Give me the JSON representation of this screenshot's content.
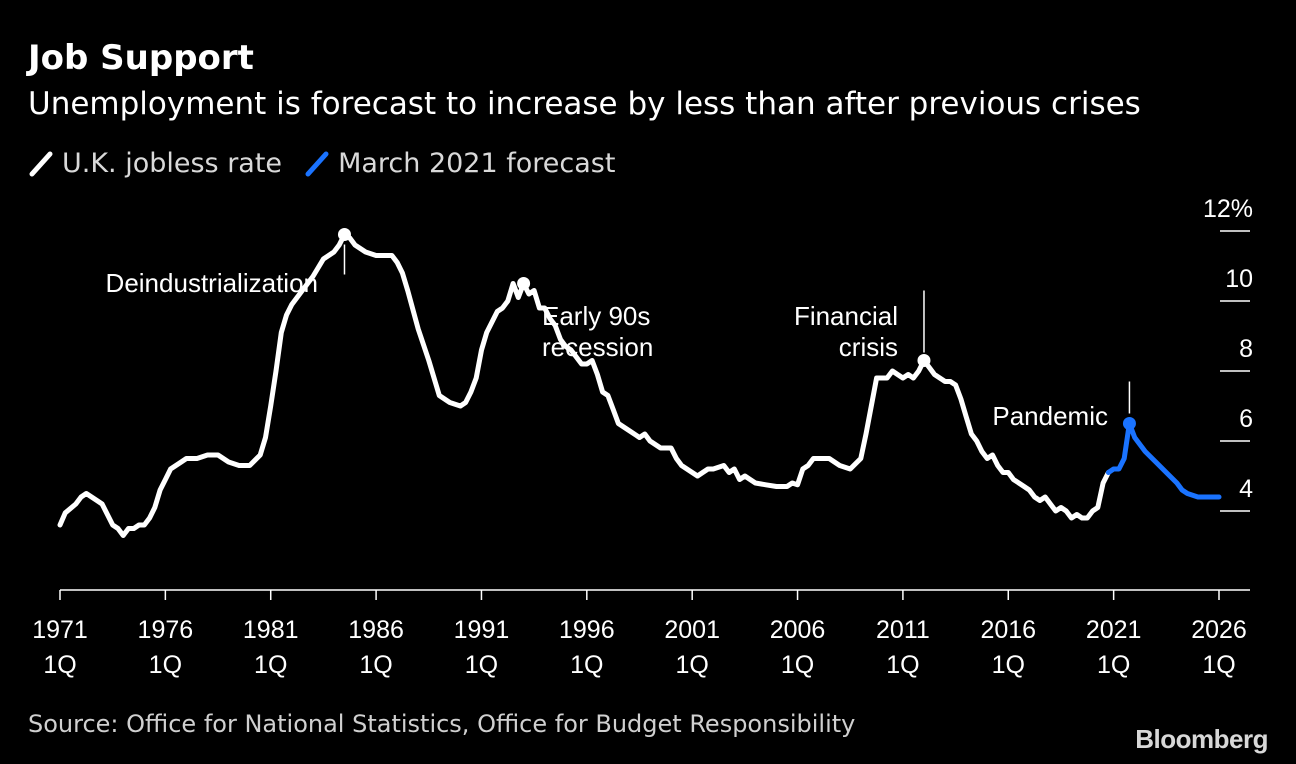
{
  "title": "Job Support",
  "subtitle": "Unemployment is forecast to increase by less than after previous crises",
  "legend": [
    {
      "label": "U.K. jobless rate",
      "color": "#ffffff"
    },
    {
      "label": "March 2021 forecast",
      "color": "#1a73ff"
    }
  ],
  "source": "Source: Office for National Statistics, Office for Budget Responsibility",
  "logo": "Bloomberg",
  "chart_data": {
    "type": "line",
    "ylim": [
      2,
      12
    ],
    "yticks": [
      {
        "value": 12,
        "label": "12%"
      },
      {
        "value": 10,
        "label": "10"
      },
      {
        "value": 8,
        "label": "8"
      },
      {
        "value": 6,
        "label": "6"
      },
      {
        "value": 4,
        "label": "4"
      }
    ],
    "xlim": [
      1971.0,
      2026.0
    ],
    "xticks": [
      {
        "value": 1971,
        "label": [
          "1971",
          "1Q"
        ]
      },
      {
        "value": 1976,
        "label": [
          "1976",
          "1Q"
        ]
      },
      {
        "value": 1981,
        "label": [
          "1981",
          "1Q"
        ]
      },
      {
        "value": 1986,
        "label": [
          "1986",
          "1Q"
        ]
      },
      {
        "value": 1991,
        "label": [
          "1991",
          "1Q"
        ]
      },
      {
        "value": 1996,
        "label": [
          "1996",
          "1Q"
        ]
      },
      {
        "value": 2001,
        "label": [
          "2001",
          "1Q"
        ]
      },
      {
        "value": 2006,
        "label": [
          "2006",
          "1Q"
        ]
      },
      {
        "value": 2011,
        "label": [
          "2011",
          "1Q"
        ]
      },
      {
        "value": 2016,
        "label": [
          "2016",
          "1Q"
        ]
      },
      {
        "value": 2021,
        "label": [
          "2021",
          "1Q"
        ]
      },
      {
        "value": 2026,
        "label": [
          "2026",
          "1Q"
        ]
      }
    ],
    "series": [
      {
        "name": "U.K. jobless rate",
        "color": "#ffffff",
        "points": [
          [
            1971.0,
            3.6
          ],
          [
            1971.25,
            3.95
          ],
          [
            1971.75,
            4.2
          ],
          [
            1972.0,
            4.4
          ],
          [
            1972.25,
            4.5
          ],
          [
            1972.5,
            4.4
          ],
          [
            1972.75,
            4.3
          ],
          [
            1973.0,
            4.2
          ],
          [
            1973.25,
            3.9
          ],
          [
            1973.5,
            3.6
          ],
          [
            1973.75,
            3.5
          ],
          [
            1974.0,
            3.3
          ],
          [
            1974.25,
            3.5
          ],
          [
            1974.5,
            3.5
          ],
          [
            1974.75,
            3.6
          ],
          [
            1975.0,
            3.6
          ],
          [
            1975.25,
            3.8
          ],
          [
            1975.5,
            4.1
          ],
          [
            1975.75,
            4.6
          ],
          [
            1976.0,
            4.9
          ],
          [
            1976.25,
            5.2
          ],
          [
            1976.5,
            5.3
          ],
          [
            1976.75,
            5.4
          ],
          [
            1977.0,
            5.5
          ],
          [
            1977.5,
            5.5
          ],
          [
            1978.0,
            5.6
          ],
          [
            1978.5,
            5.6
          ],
          [
            1979.0,
            5.4
          ],
          [
            1979.5,
            5.3
          ],
          [
            1980.0,
            5.3
          ],
          [
            1980.5,
            5.6
          ],
          [
            1980.75,
            6.1
          ],
          [
            1981.0,
            7.0
          ],
          [
            1981.25,
            8.0
          ],
          [
            1981.5,
            9.1
          ],
          [
            1981.75,
            9.6
          ],
          [
            1982.0,
            9.9
          ],
          [
            1982.5,
            10.3
          ],
          [
            1983.0,
            10.7
          ],
          [
            1983.5,
            11.2
          ],
          [
            1984.0,
            11.4
          ],
          [
            1984.25,
            11.6
          ],
          [
            1984.5,
            11.9
          ],
          [
            1984.75,
            11.8
          ],
          [
            1985.0,
            11.6
          ],
          [
            1985.5,
            11.4
          ],
          [
            1986.0,
            11.3
          ],
          [
            1986.25,
            11.3
          ],
          [
            1986.5,
            11.3
          ],
          [
            1986.75,
            11.3
          ],
          [
            1987.0,
            11.1
          ],
          [
            1987.25,
            10.8
          ],
          [
            1987.5,
            10.3
          ],
          [
            1988.0,
            9.2
          ],
          [
            1988.5,
            8.3
          ],
          [
            1989.0,
            7.3
          ],
          [
            1989.5,
            7.1
          ],
          [
            1990.0,
            7.0
          ],
          [
            1990.25,
            7.1
          ],
          [
            1990.5,
            7.4
          ],
          [
            1990.75,
            7.8
          ],
          [
            1991.0,
            8.6
          ],
          [
            1991.25,
            9.1
          ],
          [
            1991.5,
            9.4
          ],
          [
            1991.75,
            9.7
          ],
          [
            1992.0,
            9.8
          ],
          [
            1992.25,
            10.0
          ],
          [
            1992.5,
            10.5
          ],
          [
            1992.75,
            10.1
          ],
          [
            1993.0,
            10.5
          ],
          [
            1993.25,
            10.2
          ],
          [
            1993.5,
            10.3
          ],
          [
            1993.75,
            9.8
          ],
          [
            1994.0,
            9.8
          ],
          [
            1994.25,
            9.5
          ],
          [
            1994.5,
            9.3
          ],
          [
            1994.75,
            8.9
          ],
          [
            1995.0,
            8.7
          ],
          [
            1995.25,
            8.6
          ],
          [
            1995.5,
            8.4
          ],
          [
            1995.75,
            8.2
          ],
          [
            1996.0,
            8.2
          ],
          [
            1996.25,
            8.3
          ],
          [
            1996.5,
            7.9
          ],
          [
            1996.75,
            7.4
          ],
          [
            1997.0,
            7.3
          ],
          [
            1997.25,
            6.9
          ],
          [
            1997.5,
            6.5
          ],
          [
            1998.0,
            6.3
          ],
          [
            1998.5,
            6.1
          ],
          [
            1998.75,
            6.2
          ],
          [
            1999.0,
            6.0
          ],
          [
            1999.5,
            5.8
          ],
          [
            2000.0,
            5.8
          ],
          [
            2000.25,
            5.5
          ],
          [
            2000.5,
            5.3
          ],
          [
            2001.0,
            5.1
          ],
          [
            2001.25,
            5.0
          ],
          [
            2001.5,
            5.1
          ],
          [
            2001.75,
            5.2
          ],
          [
            2002.0,
            5.2
          ],
          [
            2002.5,
            5.3
          ],
          [
            2002.75,
            5.1
          ],
          [
            2003.0,
            5.2
          ],
          [
            2003.25,
            4.9
          ],
          [
            2003.5,
            5.0
          ],
          [
            2003.75,
            4.9
          ],
          [
            2004.0,
            4.8
          ],
          [
            2004.5,
            4.75
          ],
          [
            2005.0,
            4.7
          ],
          [
            2005.5,
            4.7
          ],
          [
            2005.75,
            4.8
          ],
          [
            2006.0,
            4.75
          ],
          [
            2006.25,
            5.2
          ],
          [
            2006.5,
            5.3
          ],
          [
            2006.75,
            5.5
          ],
          [
            2007.0,
            5.5
          ],
          [
            2007.5,
            5.5
          ],
          [
            2008.0,
            5.3
          ],
          [
            2008.5,
            5.2
          ],
          [
            2009.0,
            5.5
          ],
          [
            2009.25,
            6.2
          ],
          [
            2009.5,
            7.0
          ],
          [
            2009.75,
            7.8
          ],
          [
            2010.0,
            7.8
          ],
          [
            2010.25,
            7.8
          ],
          [
            2010.5,
            8.0
          ],
          [
            2010.75,
            7.9
          ],
          [
            2011.0,
            7.8
          ],
          [
            2011.25,
            7.9
          ],
          [
            2011.5,
            7.8
          ],
          [
            2011.75,
            8.0
          ],
          [
            2012.0,
            8.3
          ],
          [
            2012.25,
            8.1
          ],
          [
            2012.5,
            7.9
          ],
          [
            2012.75,
            7.8
          ],
          [
            2013.0,
            7.7
          ],
          [
            2013.25,
            7.7
          ],
          [
            2013.5,
            7.6
          ],
          [
            2013.75,
            7.2
          ],
          [
            2014.0,
            6.7
          ],
          [
            2014.25,
            6.2
          ],
          [
            2014.5,
            6.0
          ],
          [
            2014.75,
            5.7
          ],
          [
            2015.0,
            5.5
          ],
          [
            2015.25,
            5.6
          ],
          [
            2015.5,
            5.3
          ],
          [
            2015.75,
            5.1
          ],
          [
            2016.0,
            5.1
          ],
          [
            2016.25,
            4.9
          ],
          [
            2016.5,
            4.8
          ],
          [
            2016.75,
            4.7
          ],
          [
            2017.0,
            4.6
          ],
          [
            2017.25,
            4.4
          ],
          [
            2017.5,
            4.3
          ],
          [
            2017.75,
            4.4
          ],
          [
            2018.0,
            4.2
          ],
          [
            2018.25,
            4.0
          ],
          [
            2018.5,
            4.1
          ],
          [
            2018.75,
            4.0
          ],
          [
            2019.0,
            3.8
          ],
          [
            2019.25,
            3.9
          ],
          [
            2019.5,
            3.8
          ],
          [
            2019.75,
            3.8
          ],
          [
            2020.0,
            4.0
          ],
          [
            2020.25,
            4.1
          ],
          [
            2020.5,
            4.8
          ],
          [
            2020.75,
            5.1
          ]
        ]
      },
      {
        "name": "March 2021 forecast",
        "color": "#1a73ff",
        "points": [
          [
            2020.75,
            5.1
          ],
          [
            2021.0,
            5.2
          ],
          [
            2021.25,
            5.2
          ],
          [
            2021.5,
            5.5
          ],
          [
            2021.75,
            6.5
          ],
          [
            2022.0,
            6.1
          ],
          [
            2022.5,
            5.7
          ],
          [
            2023.0,
            5.4
          ],
          [
            2023.5,
            5.1
          ],
          [
            2024.0,
            4.8
          ],
          [
            2024.25,
            4.6
          ],
          [
            2024.5,
            4.5
          ],
          [
            2025.0,
            4.4
          ],
          [
            2025.5,
            4.4
          ],
          [
            2026.0,
            4.4
          ]
        ]
      }
    ],
    "annotations": [
      {
        "label": "Deindustrialization",
        "x": 1984.5,
        "y": 11.9,
        "align": "left"
      },
      {
        "label": "Early 90s recession",
        "x": 1993.0,
        "y": 10.5,
        "align": "right-below"
      },
      {
        "label": "Financial crisis",
        "x": 2012.0,
        "y": 8.3,
        "align": "above-left"
      },
      {
        "label": "Pandemic",
        "x": 2021.75,
        "y": 6.5,
        "align": "above-left"
      }
    ]
  }
}
